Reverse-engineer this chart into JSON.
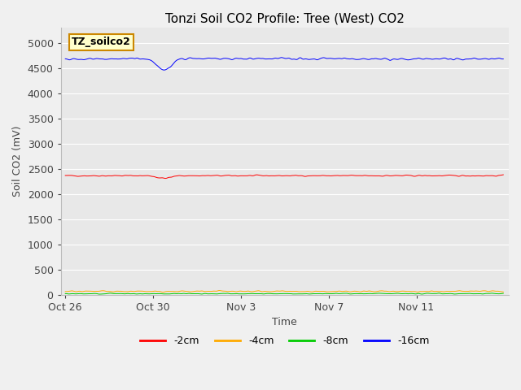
{
  "title": "Tonzi Soil CO2 Profile: Tree (West) CO2",
  "xlabel": "Time",
  "ylabel": "Soil CO2 (mV)",
  "label_box_text": "TZ_soilco2",
  "ylim": [
    0,
    5300
  ],
  "yticks": [
    0,
    500,
    1000,
    1500,
    2000,
    2500,
    3000,
    3500,
    4000,
    4500,
    5000
  ],
  "x_tick_labels": [
    "Oct 26",
    "Oct 30",
    "Nov 3",
    "Nov 7",
    "Nov 11"
  ],
  "x_tick_positions": [
    0,
    96,
    192,
    288,
    384
  ],
  "n_points": 480,
  "series": {
    "neg2cm": {
      "label": "-2cm",
      "color": "#ff0000",
      "mean": 2360,
      "noise": 12
    },
    "neg4cm": {
      "label": "-4cm",
      "color": "#ffaa00",
      "mean": 65,
      "noise": 12
    },
    "neg8cm": {
      "label": "-8cm",
      "color": "#00cc00",
      "mean": 18,
      "noise": 8
    },
    "neg16cm": {
      "label": "-16cm",
      "color": "#0000ff",
      "mean": 4680,
      "noise": 20
    }
  },
  "fig_bg_color": "#f0f0f0",
  "plot_bg_color": "#e8e8e8",
  "title_fontsize": 11,
  "axis_label_fontsize": 9,
  "tick_fontsize": 9,
  "legend_fontsize": 9,
  "grid_color": "#ffffff",
  "label_box_facecolor": "#ffffcc",
  "label_box_edgecolor": "#cc8800"
}
